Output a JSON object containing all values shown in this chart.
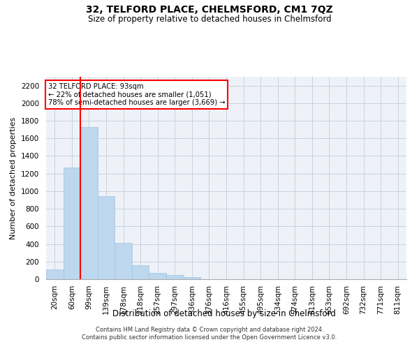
{
  "title": "32, TELFORD PLACE, CHELMSFORD, CM1 7QZ",
  "subtitle": "Size of property relative to detached houses in Chelmsford",
  "xlabel": "Distribution of detached houses by size in Chelmsford",
  "ylabel": "Number of detached properties",
  "footer_line1": "Contains HM Land Registry data © Crown copyright and database right 2024.",
  "footer_line2": "Contains public sector information licensed under the Open Government Licence v3.0.",
  "bar_categories": [
    "20sqm",
    "60sqm",
    "99sqm",
    "139sqm",
    "178sqm",
    "218sqm",
    "257sqm",
    "297sqm",
    "336sqm",
    "376sqm",
    "416sqm",
    "455sqm",
    "495sqm",
    "534sqm",
    "574sqm",
    "613sqm",
    "653sqm",
    "692sqm",
    "732sqm",
    "771sqm",
    "811sqm"
  ],
  "bar_values": [
    110,
    1270,
    1730,
    940,
    415,
    155,
    75,
    45,
    25,
    0,
    0,
    0,
    0,
    0,
    0,
    0,
    0,
    0,
    0,
    0,
    0
  ],
  "bar_color": "#bdd7ee",
  "bar_edge_color": "#9dc3e0",
  "grid_color": "#c8d0de",
  "background_color": "#eef2f8",
  "vline_color": "red",
  "vline_x_index": 2,
  "bar_width": 1.0,
  "annotation_text_line1": "32 TELFORD PLACE: 93sqm",
  "annotation_text_line2": "← 22% of detached houses are smaller (1,051)",
  "annotation_text_line3": "78% of semi-detached houses are larger (3,669) →",
  "annotation_box_edgecolor": "red",
  "ylim": [
    0,
    2300
  ],
  "yticks": [
    0,
    200,
    400,
    600,
    800,
    1000,
    1200,
    1400,
    1600,
    1800,
    2000,
    2200
  ],
  "title_fontsize": 10,
  "subtitle_fontsize": 8.5,
  "ylabel_fontsize": 8,
  "xlabel_fontsize": 8.5,
  "tick_fontsize": 7.5,
  "footer_fontsize": 6
}
